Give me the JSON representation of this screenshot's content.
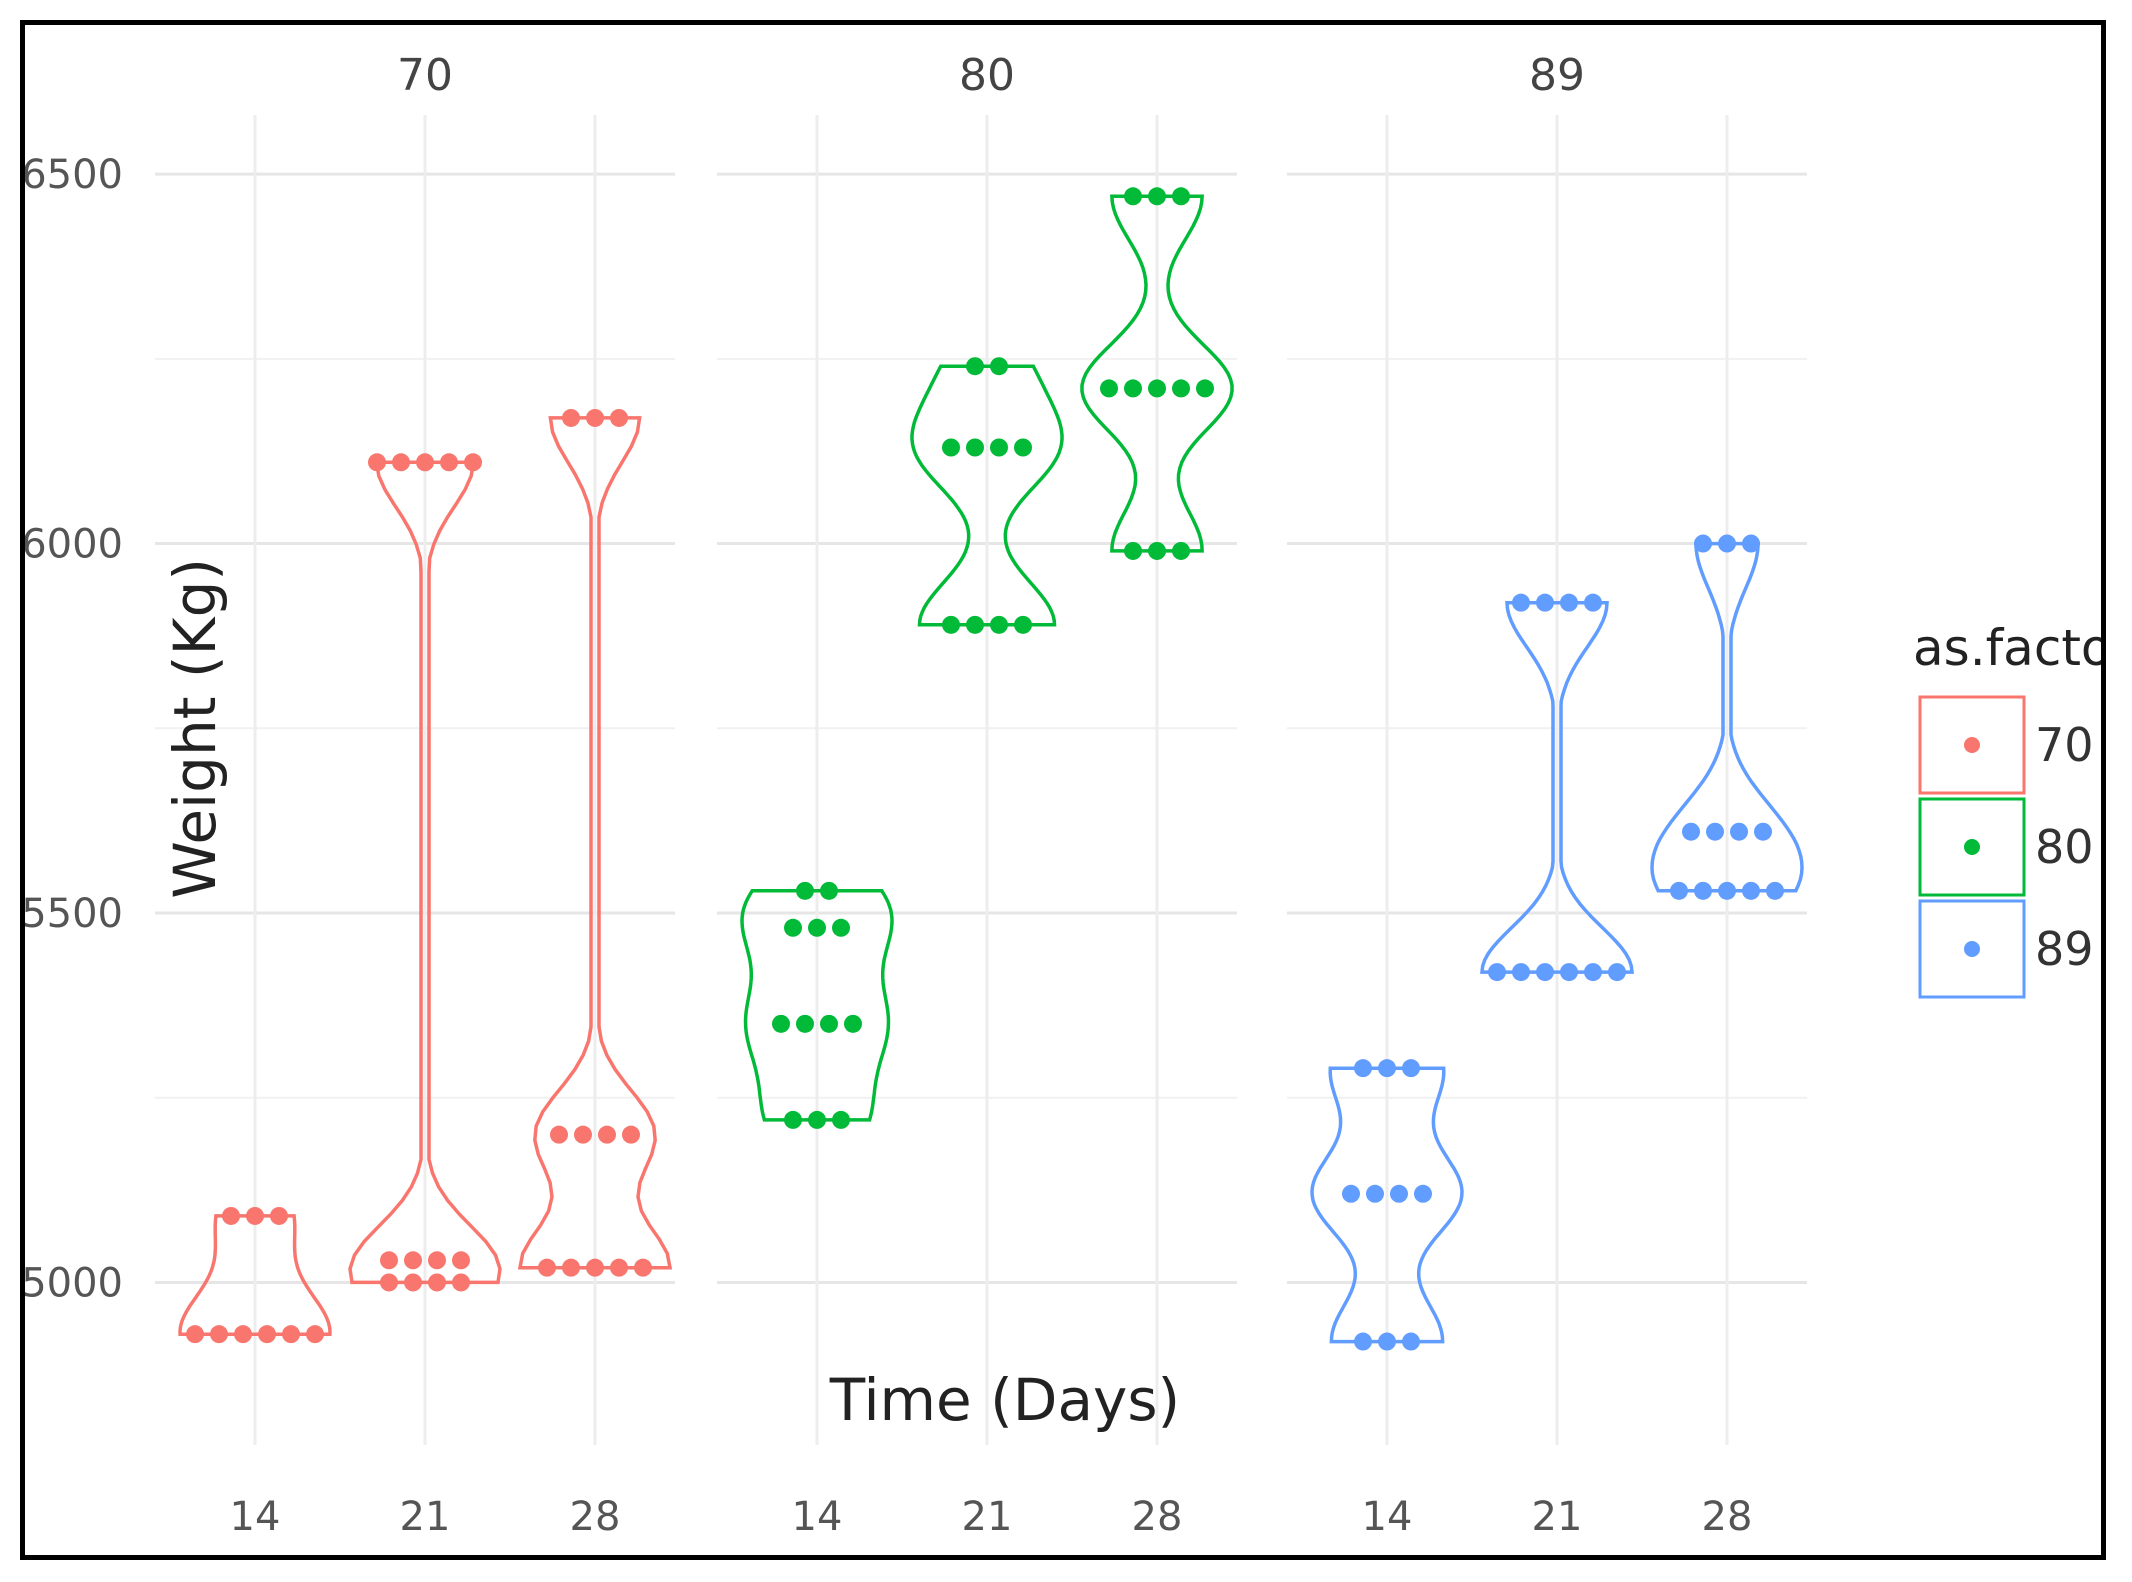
{
  "chart_data": {
    "type": "violin",
    "facets": [
      "70",
      "80",
      "89"
    ],
    "categories": [
      "14",
      "21",
      "28"
    ],
    "xlabel": "Time (Days)",
    "ylabel": "Weight (Kg)",
    "ylim": [
      4780,
      6580
    ],
    "yticks": [
      5000,
      5500,
      6000,
      6500
    ],
    "legend": {
      "title": "as.factor",
      "entries": [
        "70",
        "80",
        "89"
      ],
      "position": "right"
    },
    "colors": {
      "70": "#f8766d",
      "80": "#00ba38",
      "89": "#619cff"
    },
    "series": [
      {
        "name": "70",
        "groups": [
          {
            "day": "14",
            "points": [
              5090,
              5090,
              5090,
              4930,
              4930,
              4930,
              4930,
              4930,
              4930
            ]
          },
          {
            "day": "21",
            "points": [
              6110,
              6110,
              6110,
              6110,
              6110,
              5030,
              5030,
              5030,
              5030,
              5000,
              5000,
              5000,
              5000
            ]
          },
          {
            "day": "28",
            "points": [
              6170,
              6170,
              6170,
              5200,
              5200,
              5200,
              5200,
              5020,
              5020,
              5020,
              5020,
              5020
            ]
          }
        ]
      },
      {
        "name": "80",
        "groups": [
          {
            "day": "14",
            "points": [
              5530,
              5530,
              5480,
              5480,
              5480,
              5350,
              5350,
              5350,
              5350,
              5220,
              5220,
              5220
            ]
          },
          {
            "day": "21",
            "points": [
              6240,
              6240,
              6130,
              6130,
              6130,
              6130,
              5890,
              5890,
              5890,
              5890
            ]
          },
          {
            "day": "28",
            "points": [
              6470,
              6470,
              6470,
              6210,
              6210,
              6210,
              6210,
              6210,
              5990,
              5990,
              5990
            ]
          }
        ]
      },
      {
        "name": "89",
        "groups": [
          {
            "day": "14",
            "points": [
              5290,
              5290,
              5290,
              5120,
              5120,
              5120,
              5120,
              4920,
              4920,
              4920
            ]
          },
          {
            "day": "21",
            "points": [
              5920,
              5920,
              5920,
              5920,
              5420,
              5420,
              5420,
              5420,
              5420,
              5420
            ]
          },
          {
            "day": "28",
            "points": [
              6000,
              6000,
              6000,
              5610,
              5610,
              5610,
              5610,
              5530,
              5530,
              5530,
              5530,
              5530
            ]
          }
        ]
      }
    ]
  }
}
